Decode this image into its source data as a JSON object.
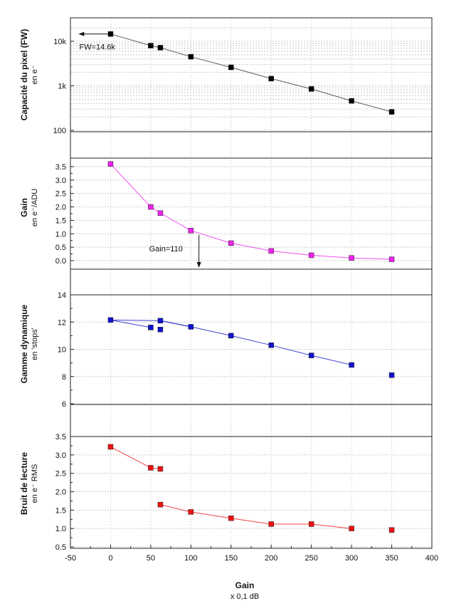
{
  "chart_data": [
    {
      "type": "scatter",
      "yscale": "log",
      "ylabel": "Capacité du pixel (FW)",
      "ylabel_sub": "en e⁻",
      "ylim": [
        100,
        30000
      ],
      "yticks": [
        100,
        1000,
        10000
      ],
      "ytick_labels": [
        "100",
        "1k",
        "10k"
      ],
      "color": "#000000",
      "grid": true,
      "segments": [
        [
          0,
          8
        ]
      ],
      "x": [
        0,
        50,
        62,
        100,
        150,
        200,
        250,
        300,
        350
      ],
      "y": [
        14600,
        8000,
        7200,
        4500,
        2600,
        1450,
        850,
        460,
        260
      ],
      "annotation": {
        "text": "FW=14.6k",
        "x": 0,
        "y": 14600,
        "arrow_to_x": -40
      }
    },
    {
      "type": "scatter",
      "yscale": "linear",
      "ylabel": "Gain",
      "ylabel_sub": "en e⁻/ADU",
      "ylim": [
        -0.3,
        3.9
      ],
      "yticks": [
        0,
        0.5,
        1,
        1.5,
        2,
        2.5,
        3,
        3.5
      ],
      "ytick_labels": [
        "0.0",
        "0.5",
        "1.0",
        "1.5",
        "2.0",
        "2.5",
        "3.0",
        "3.5"
      ],
      "color": "#ee22ee",
      "grid": true,
      "segments": [
        [
          0,
          8
        ]
      ],
      "x": [
        0,
        50,
        62,
        100,
        150,
        200,
        250,
        300,
        350
      ],
      "y": [
        3.6,
        2.0,
        1.77,
        1.12,
        0.65,
        0.36,
        0.2,
        0.1,
        0.05
      ],
      "annotation": {
        "text": "Gain=110",
        "x": 110
      }
    },
    {
      "type": "scatter",
      "yscale": "linear",
      "ylabel": "Gamme dynamique",
      "ylabel_sub": "en 'stops'",
      "ylim": [
        6,
        14
      ],
      "yticks": [
        6,
        8,
        10,
        12,
        14
      ],
      "ytick_labels": [
        "6",
        "8",
        "10",
        "12",
        "14"
      ],
      "color": "#1111cc",
      "grid": true,
      "segments": [
        [
          0,
          1
        ],
        [
          3,
          8
        ]
      ],
      "extra_segments": [
        [
          [
            0,
            12.15
          ],
          [
            62,
            12.1
          ],
          [
            100,
            11.65
          ]
        ]
      ],
      "x": [
        0,
        50,
        62,
        62,
        100,
        150,
        200,
        250,
        300,
        350
      ],
      "y": [
        12.15,
        11.6,
        11.45,
        12.1,
        11.65,
        11.0,
        10.3,
        9.55,
        8.85,
        8.1
      ]
    },
    {
      "type": "scatter",
      "yscale": "linear",
      "ylabel": "Bruit de lecture",
      "ylabel_sub": "en e⁻ RMS",
      "ylim": [
        0.5,
        3.5
      ],
      "yticks": [
        0.5,
        1,
        1.5,
        2,
        2.5,
        3,
        3.5
      ],
      "ytick_labels": [
        "0.5",
        "1.0",
        "1.5",
        "2.0",
        "2.5",
        "3.0",
        "3.5"
      ],
      "color": "#ee1111",
      "grid": true,
      "segments": [
        [
          0,
          2
        ],
        [
          3,
          8
        ]
      ],
      "x": [
        0,
        50,
        62,
        62,
        100,
        150,
        200,
        250,
        300,
        350
      ],
      "y": [
        3.22,
        2.65,
        2.62,
        1.65,
        1.45,
        1.28,
        1.12,
        1.12,
        1.0,
        0.96
      ]
    }
  ],
  "xaxis": {
    "xlim": [
      -50,
      400
    ],
    "xticks": [
      -50,
      0,
      50,
      100,
      150,
      200,
      250,
      300,
      350,
      400
    ],
    "xlabel": "Gain",
    "xlabel_sub": "x 0,1 dB"
  }
}
